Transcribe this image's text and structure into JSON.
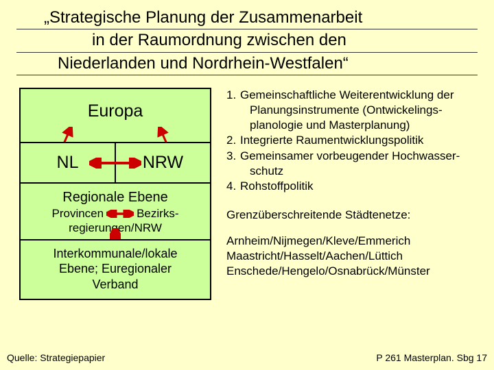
{
  "colors": {
    "page_bg": "#ffffcc",
    "box_bg": "#ccff99",
    "box_border": "#000000",
    "arrow_red": "#cc0000",
    "text": "#000000",
    "title_rule": "#333333"
  },
  "fonts": {
    "family": "Arial",
    "title_size_pt": 24,
    "box_big_pt": 25,
    "box_mid_pt": 20,
    "body_pt": 17,
    "footer_pt": 14
  },
  "title": {
    "line1": "„Strategische Planung der Zusammenarbeit",
    "line2": "in der Raumordnung zwischen den",
    "line3": "Niederlanden und Nordrhein-Westfalen“"
  },
  "left": {
    "europa": "Europa",
    "nl": "NL",
    "nrw": "NRW",
    "regional_head": "Regionale Ebene",
    "prov_left": "Provincen",
    "prov_right": "Bezirks-",
    "prov_line2": "regierungen/NRW",
    "interk_l1": "Interkommunale/lokale",
    "interk_l2": "Ebene; Euregionaler",
    "interk_l3": "Verband"
  },
  "right": {
    "items": [
      {
        "n": "1.",
        "t": "Gemeinschaftliche Weiterentwicklung der",
        "cont": [
          "Planungsinstrumente (Ontwickelings-",
          "planologie und Masterplanung)"
        ]
      },
      {
        "n": "2.",
        "t": "Integrierte Raumentwicklungspolitik",
        "cont": []
      },
      {
        "n": "3.",
        "t": "Gemeinsamer vorbeugender Hochwasser-",
        "cont": [
          "schutz"
        ]
      },
      {
        "n": "4.",
        "t": "Rohstoffpolitik",
        "cont": []
      }
    ],
    "grenz_head": "Grenzüberschreitende Städtenetze:",
    "grenz_lines": [
      "Arnheim/Nijmegen/Kleve/Emmerich",
      "Maastricht/Hasselt/Aachen/Lüttich",
      "Enschede/Hengelo/Osnabrück/Münster"
    ]
  },
  "footer": {
    "left": "Quelle: Strategiepapier",
    "right": "P 261 Masterplan. Sbg 17"
  },
  "diagram": {
    "type": "flowchart",
    "nodes": [
      {
        "id": "europa",
        "label": "Europa"
      },
      {
        "id": "nl",
        "label": "NL"
      },
      {
        "id": "nrw",
        "label": "NRW"
      },
      {
        "id": "regional",
        "label": "Regionale Ebene"
      },
      {
        "id": "interk",
        "label": "Interkommunale/lokale Ebene; Euregionaler Verband"
      }
    ],
    "edges": [
      {
        "from": "europa",
        "to": "nl",
        "bidir": true,
        "color": "#cc0000"
      },
      {
        "from": "europa",
        "to": "nrw",
        "bidir": true,
        "color": "#cc0000"
      },
      {
        "from": "nl",
        "to": "nrw",
        "bidir": true,
        "color": "#cc0000"
      },
      {
        "from": "provincen",
        "to": "bezirksreg",
        "bidir": true,
        "color": "#cc0000"
      },
      {
        "from": "regional",
        "to": "interk",
        "bidir": true,
        "color": "#cc0000"
      }
    ]
  }
}
